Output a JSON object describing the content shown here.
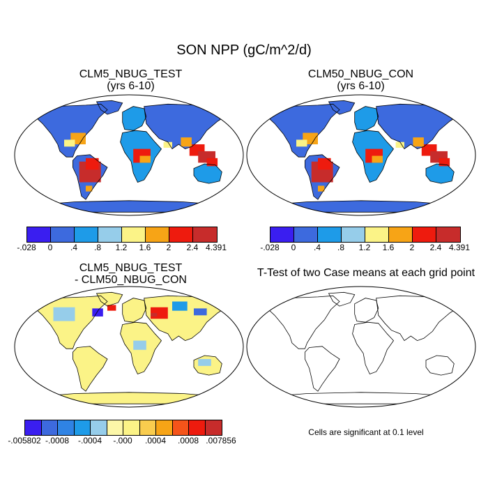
{
  "title": "SON NPP (gC/m^2/d)",
  "panels": [
    {
      "line1": "CLM5_NBUG_TEST",
      "line2": "(yrs 6-10)"
    },
    {
      "line1": "CLM50_NBUG_CON",
      "line2": "(yrs 6-10)"
    },
    {
      "line1": "CLM5_NBUG_TEST",
      "line2": "- CLM50_NBUG_CON"
    },
    {
      "line1": "T-Test of two Case means at each grid point",
      "line2": ""
    }
  ],
  "note": "Cells are significant at 0.1 level",
  "colorbar_main": {
    "colors": [
      "#3a1ef0",
      "#3d6ade",
      "#1e9be8",
      "#96cdea",
      "#fbf387",
      "#f7a416",
      "#ee1b0e",
      "#c72c2b"
    ],
    "labels": [
      "-.028",
      "0",
      ".4",
      ".8",
      "1.2",
      "1.6",
      "2",
      "2.4",
      "4.391"
    ]
  },
  "colorbar_diff": {
    "colors": [
      "#3a1ef0",
      "#3d6ade",
      "#2f83e4",
      "#1e9be8",
      "#96cdea",
      "#fcf7a8",
      "#fbf387",
      "#f9cc4e",
      "#f7a416",
      "#f5541a",
      "#ee1b0e",
      "#c72c2b"
    ],
    "labels": [
      "-.005802",
      "-.0008",
      "-.0004",
      "-.000",
      ".0004",
      ".0008",
      ".007856"
    ]
  },
  "chart_data": {
    "type": "heatmap",
    "title": "SON NPP (gC/m^2/d)",
    "panels": [
      {
        "name": "CLM5_NBUG_TEST (yrs 6-10)",
        "variable": "NPP",
        "units": "gC/m^2/d",
        "range": [
          -0.028,
          4.391
        ],
        "levels": [
          0,
          0.4,
          0.8,
          1.2,
          1.6,
          2,
          2.4
        ]
      },
      {
        "name": "CLM50_NBUG_CON (yrs 6-10)",
        "variable": "NPP",
        "units": "gC/m^2/d",
        "range": [
          -0.028,
          4.391
        ],
        "levels": [
          0,
          0.4,
          0.8,
          1.2,
          1.6,
          2,
          2.4
        ]
      },
      {
        "name": "CLM5_NBUG_TEST - CLM50_NBUG_CON",
        "variable": "NPP difference",
        "range": [
          -0.005802,
          0.007856
        ],
        "levels": [
          -0.0008,
          -0.0004,
          0.0,
          0.0004,
          0.0008
        ]
      },
      {
        "name": "T-Test of two Case means at each grid point",
        "significance": 0.1
      }
    ],
    "regions_main": [
      {
        "region": "high-latitude northern land",
        "band": "0 - .4"
      },
      {
        "region": "Amazon / northern South America",
        "band": "2.4 - 4.391"
      },
      {
        "region": "southeastern United States",
        "band": "2 - 2.4"
      },
      {
        "region": "Congo basin",
        "band": "1.6 - 2.4"
      },
      {
        "region": "Southeast Asia / Indonesia",
        "band": "2.4 - 4.391"
      },
      {
        "region": "India / Indochina",
        "band": "1.2 - 2.4"
      },
      {
        "region": "southern Africa",
        "band": "0 - .4"
      },
      {
        "region": "Australia",
        "band": "0 - .4"
      },
      {
        "region": "Antarctica",
        "band": "0 - .4"
      }
    ]
  }
}
